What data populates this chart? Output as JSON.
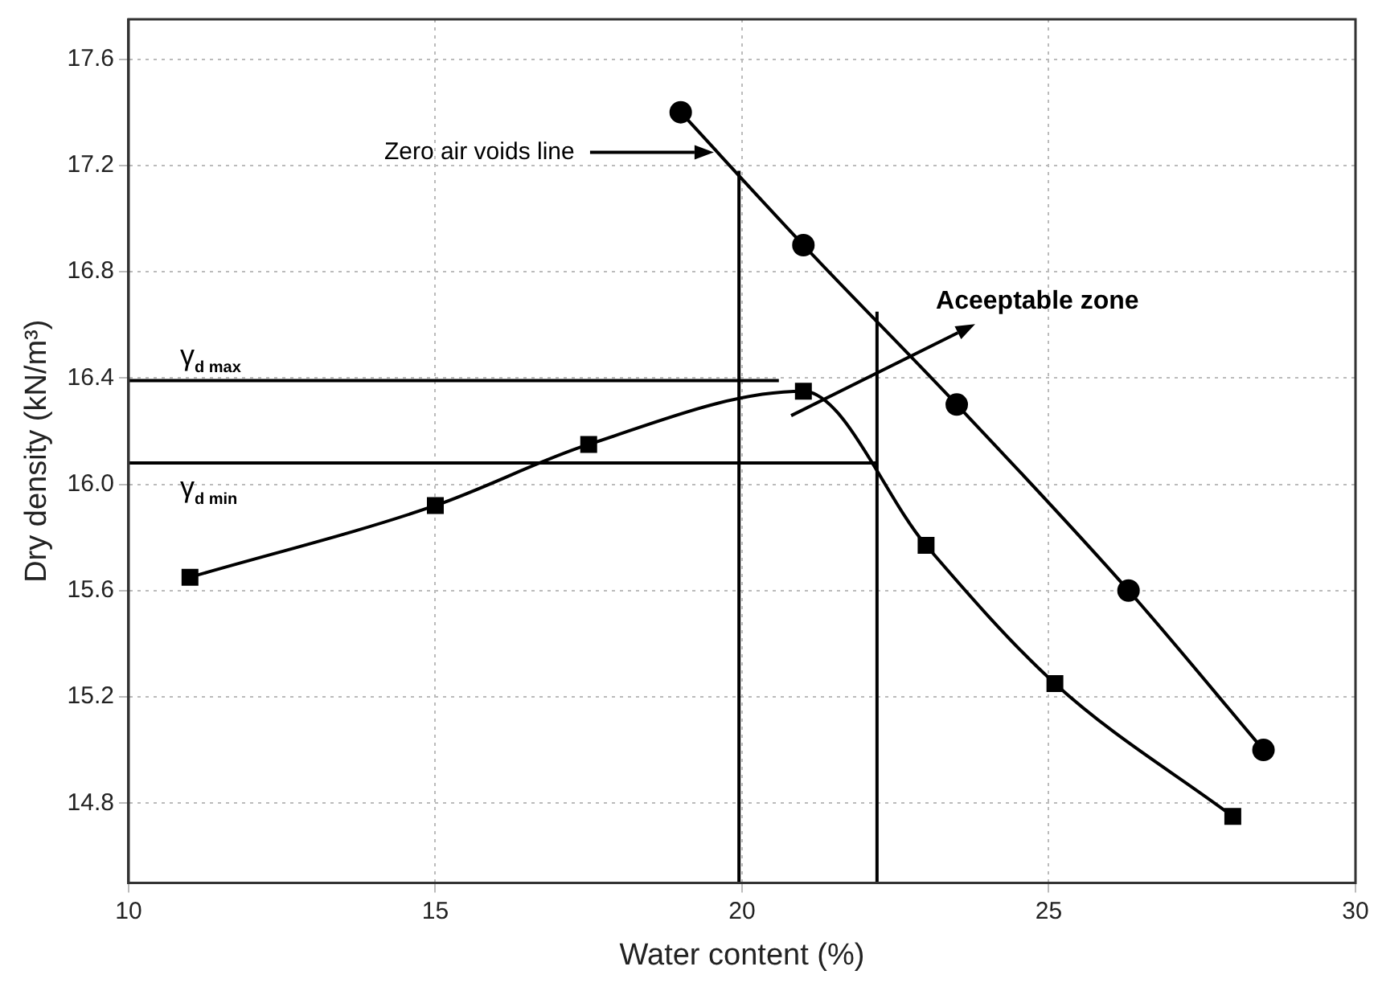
{
  "chart_data": {
    "type": "line",
    "xlabel": "Water content (%)",
    "ylabel": "Dry density (kN/m³)",
    "xlim": [
      10,
      30
    ],
    "xticks": [
      10,
      15,
      20,
      25,
      30
    ],
    "ylim": [
      14.5,
      17.75
    ],
    "yticks": [
      {
        "value": 14.8,
        "label": "14.8"
      },
      {
        "value": 15.2,
        "label": "15.2"
      },
      {
        "value": 15.6,
        "label": "15.6"
      },
      {
        "value": 16.0,
        "label": "16.0"
      },
      {
        "value": 16.4,
        "label": "16.4"
      },
      {
        "value": 16.8,
        "label": "16.8"
      },
      {
        "value": 17.2,
        "label": "17.2"
      },
      {
        "value": 17.6,
        "label": "17.6"
      }
    ],
    "grid": true,
    "legend": false,
    "series": [
      {
        "color": "#000000",
        "marker": "square",
        "x": [
          11,
          15,
          17.5,
          21,
          23,
          25.1,
          28
        ],
        "values": [
          15.65,
          15.92,
          16.15,
          16.35,
          15.77,
          15.25,
          14.75
        ]
      },
      {
        "color": "#000000",
        "marker": "circle",
        "x": [
          19,
          21,
          23.5,
          26.3,
          28.5
        ],
        "values": [
          17.4,
          16.9,
          16.3,
          15.6,
          15.0
        ]
      },
      {
        "name": "γ$_{d max}$",
        "color": "#000000",
        "marker": "none",
        "x": [
          10,
          20.6
        ],
        "values": [
          16.39,
          16.39
        ]
      },
      {
        "name": "γ$_{d min}$",
        "color": "#000000",
        "marker": "none",
        "x": [
          10,
          22.2
        ],
        "values": [
          16.08,
          16.08
        ]
      },
      {
        "color": "#000000",
        "marker": "none",
        "x": [
          19.95,
          19.95
        ],
        "values": [
          14.5,
          17.18
        ]
      },
      {
        "color": "#000000",
        "marker": "none",
        "x": [
          22.2,
          22.2
        ],
        "values": [
          14.5,
          16.65
        ]
      }
    ],
    "annotations": [
      "Zero air voids line",
      "Aceeptable zone"
    ]
  }
}
